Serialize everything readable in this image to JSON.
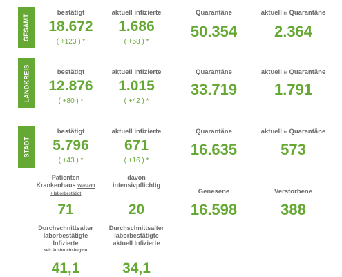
{
  "sections": {
    "gesamt": {
      "label": "GESAMT",
      "bestaetigt_label": "bestätigt",
      "bestaetigt": "18.672",
      "bestaetigt_change": "( +123 ) *",
      "infiziert_label": "aktuell infizierte",
      "infiziert": "1.686",
      "infiziert_change": "( +58 ) *",
      "quarantaene_label": "Quarantäne",
      "quarantaene": "50.354",
      "aktuell_quarantaene_label_a": "aktuell",
      "aktuell_quarantaene_label_b": "in",
      "aktuell_quarantaene_label_c": "Quarantäne",
      "aktuell_quarantaene": "2.364"
    },
    "landkreis": {
      "label": "LANDKREIS",
      "bestaetigt_label": "bestätigt",
      "bestaetigt": "12.876",
      "bestaetigt_change": "( +80 ) *",
      "infiziert_label": "aktuell infizierte",
      "infiziert": "1.015",
      "infiziert_change": "( +42 ) *",
      "quarantaene_label": "Quarantäne",
      "quarantaene": "33.719",
      "aktuell_quarantaene_label_a": "aktuell",
      "aktuell_quarantaene_label_b": "in",
      "aktuell_quarantaene_label_c": "Quarantäne",
      "aktuell_quarantaene": "1.791"
    },
    "stadt": {
      "label": "STADT",
      "bestaetigt_label": "bestätigt",
      "bestaetigt": "5.796",
      "bestaetigt_change": "( +43 ) *",
      "infiziert_label": "aktuell infizierte",
      "infiziert": "671",
      "infiziert_change": "( +16 ) *",
      "quarantaene_label": "Quarantäne",
      "quarantaene": "16.635",
      "aktuell_quarantaene_label_a": "aktuell",
      "aktuell_quarantaene_label_b": "in",
      "aktuell_quarantaene_label_c": "Quarantäne",
      "aktuell_quarantaene": "573"
    }
  },
  "details": {
    "krankenhaus_label_1": "Patienten",
    "krankenhaus_label_2": "Krankenhaus",
    "krankenhaus_note_a": "Verdacht",
    "krankenhaus_note_b": "+ laborbestätigt",
    "krankenhaus": "71",
    "intensiv_label_1": "davon",
    "intensiv_label_2": "intensivpflichtig",
    "intensiv": "20",
    "genesene_label": "Genesene",
    "genesene": "16.598",
    "verstorbene_label": "Verstorbene",
    "verstorbene": "388",
    "alter1_label_1": "Durchschnittsalter",
    "alter1_label_2": "laborbestätigte",
    "alter1_label_3": "Infizierte",
    "alter1_note": "seit Ausbruchsbeginn",
    "alter1": "41,1",
    "alter2_label_1": "Durchschnittsalter",
    "alter2_label_2": "laborbestätigte",
    "alter2_label_3": "aktuell Infizierte",
    "alter2": "34,1"
  },
  "colors": {
    "accent": "#66a834",
    "label": "#6b6b6b"
  }
}
